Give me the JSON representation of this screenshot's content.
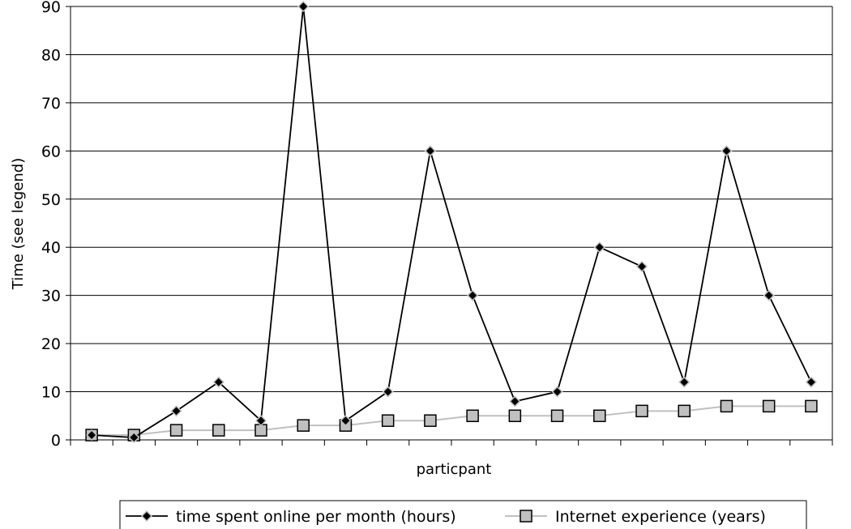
{
  "chart_data": {
    "type": "line",
    "title": "",
    "xlabel": "particpant",
    "ylabel": "Time (see legend)",
    "ylim": [
      0,
      90
    ],
    "yticks": [
      0,
      10,
      20,
      30,
      40,
      50,
      60,
      70,
      80,
      90
    ],
    "grid": true,
    "legend_position": "bottom",
    "x": [
      1,
      2,
      3,
      4,
      5,
      6,
      7,
      8,
      9,
      10,
      11,
      12,
      13,
      14,
      15,
      16,
      17,
      18
    ],
    "series": [
      {
        "name": "time spent online per month (hours)",
        "color": "#000000",
        "marker": "diamond",
        "values": [
          1,
          0.5,
          6,
          12,
          4,
          90,
          4,
          10,
          60,
          30,
          8,
          10,
          40,
          36,
          12,
          60,
          30,
          12
        ]
      },
      {
        "name": "Internet experience (years)",
        "color": "#c0c0c0",
        "marker": "square",
        "values": [
          1,
          1,
          2,
          2,
          2,
          3,
          3,
          4,
          4,
          5,
          5,
          5,
          5,
          6,
          6,
          7,
          7,
          7
        ]
      }
    ]
  }
}
